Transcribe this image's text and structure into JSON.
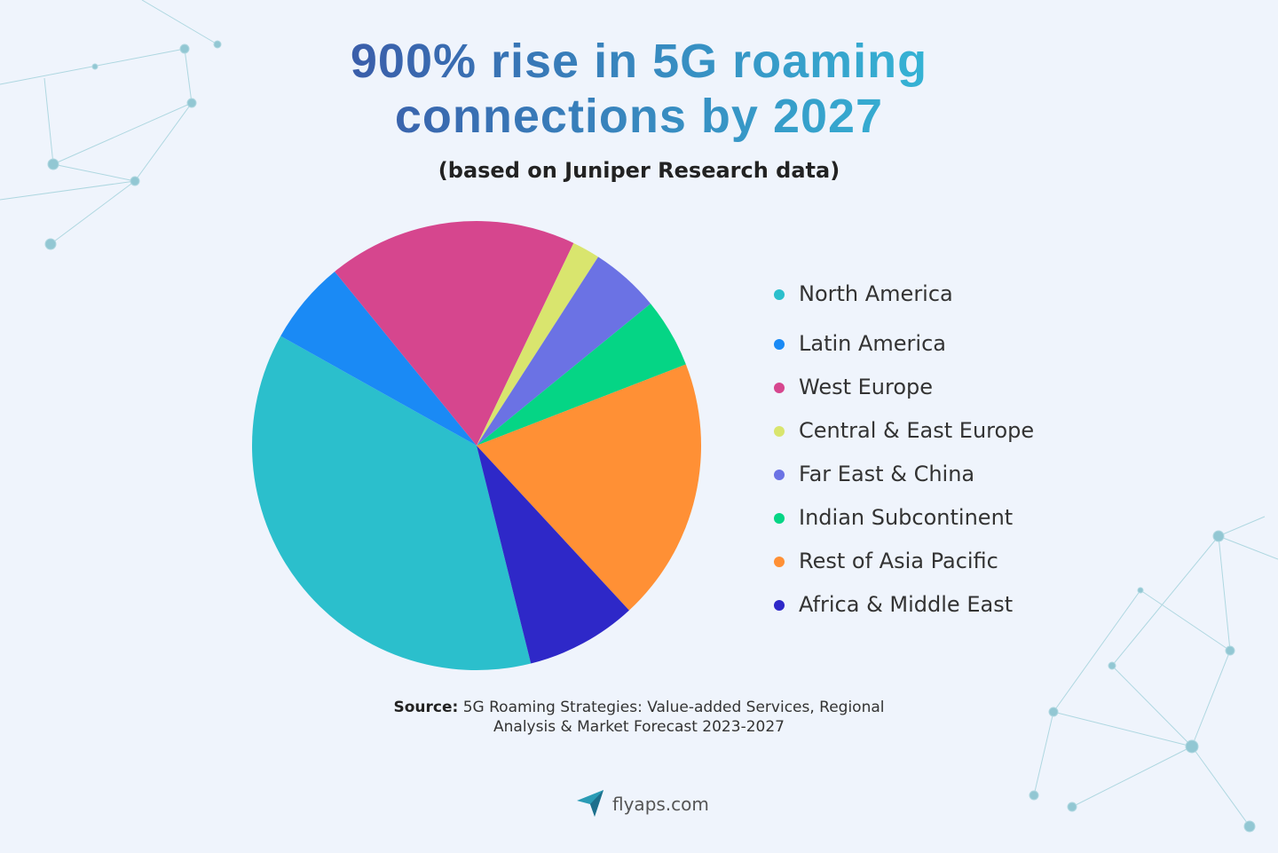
{
  "chart_data": {
    "type": "pie",
    "title": "900% rise in 5G roaming connections by 2027",
    "subtitle": "(based on Juniper Research data)",
    "categories": [
      "North America",
      "Latin America",
      "West Europe",
      "Central & East Europe",
      "Far East & China",
      "Indian Subcontinent",
      "Rest of Asia Pacific",
      "Africa & Middle East"
    ],
    "values": [
      37,
      6,
      18,
      2,
      5,
      5,
      19,
      8
    ],
    "colors": [
      "#2bbfcc",
      "#1a8af5",
      "#d6468e",
      "#d9e56e",
      "#6b72e4",
      "#05d585",
      "#ff9035",
      "#2e28c8"
    ],
    "legend": "right"
  },
  "source": {
    "label": "Source:",
    "text": "5G Roaming Strategies: Value-added Services, Regional Analysis & Market Forecast 2023-2027"
  },
  "branding": {
    "site": "flyaps.com"
  }
}
